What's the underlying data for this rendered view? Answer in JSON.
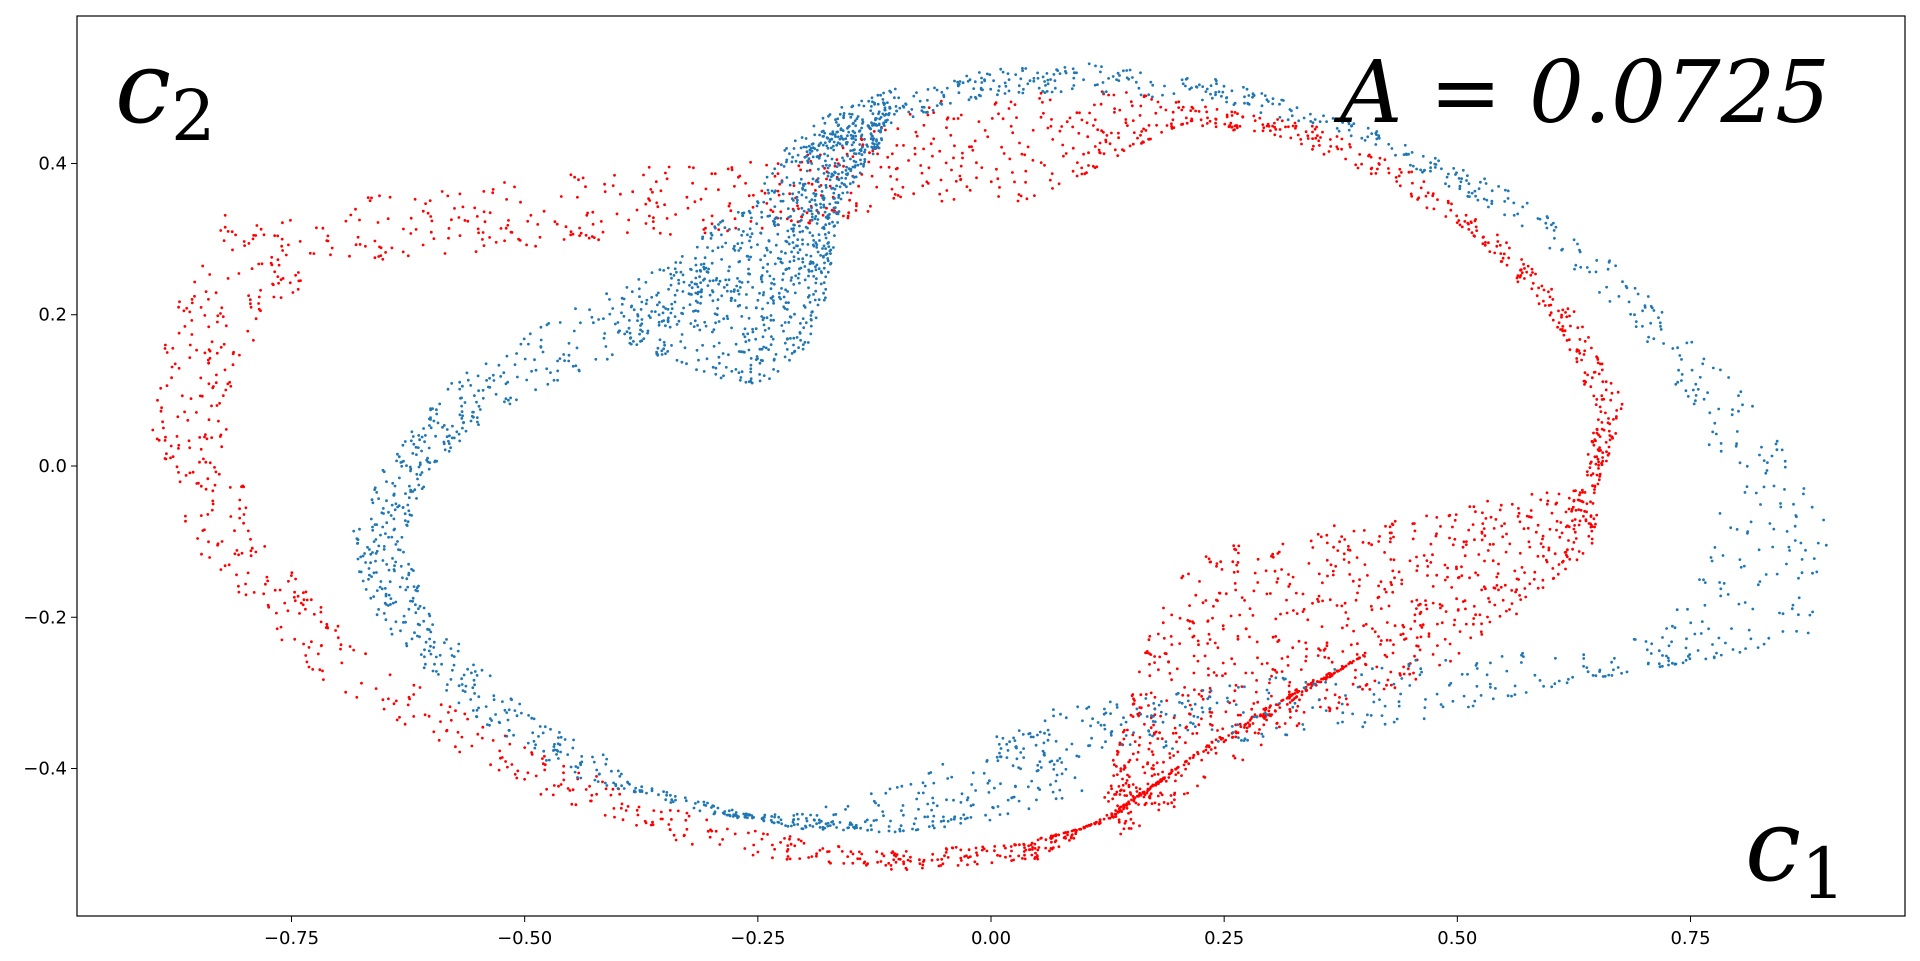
{
  "chart_data": {
    "type": "scatter",
    "title": "",
    "xlabel": "c1",
    "ylabel": "c2",
    "annotation": "A = 0.0725",
    "xlim": [
      -0.98,
      0.98
    ],
    "ylim": [
      -0.595,
      0.595
    ],
    "x_ticks": [
      -0.75,
      -0.5,
      -0.25,
      0.0,
      0.25,
      0.5,
      0.75
    ],
    "x_tick_labels": [
      "−0.75",
      "−0.50",
      "−0.25",
      "0.00",
      "0.25",
      "0.50",
      "0.75"
    ],
    "y_ticks": [
      -0.4,
      -0.2,
      0.0,
      0.2,
      0.4
    ],
    "y_tick_labels": [
      "−0.4",
      "−0.2",
      "0.0",
      "0.2",
      "0.4"
    ],
    "grid": false,
    "legend": "none",
    "series": [
      {
        "color": "#ff0000",
        "points_per_band": 900,
        "bands": [
          {
            "outer": [
              [
                -0.82,
                0.34
              ],
              [
                -0.88,
                0.2
              ],
              [
                -0.9,
                0.05
              ],
              [
                -0.85,
                -0.12
              ],
              [
                -0.72,
                -0.28
              ],
              [
                -0.52,
                -0.42
              ],
              [
                -0.3,
                -0.51
              ],
              [
                -0.1,
                -0.535
              ],
              [
                0.05,
                -0.52
              ],
              [
                0.15,
                -0.45
              ],
              [
                0.23,
                -0.37
              ],
              [
                0.32,
                -0.3
              ],
              [
                0.4,
                -0.25
              ]
            ],
            "inner": [
              [
                -0.7,
                0.27
              ],
              [
                -0.78,
                0.2
              ],
              [
                -0.82,
                0.05
              ],
              [
                -0.78,
                -0.1
              ],
              [
                -0.66,
                -0.26
              ],
              [
                -0.48,
                -0.38
              ],
              [
                -0.3,
                -0.47
              ],
              [
                -0.12,
                -0.51
              ],
              [
                0.02,
                -0.5
              ],
              [
                0.1,
                -0.48
              ],
              [
                0.18,
                -0.42
              ],
              [
                0.3,
                -0.33
              ],
              [
                0.4,
                -0.25
              ]
            ]
          },
          {
            "outer": [
              [
                -0.8,
                0.32
              ],
              [
                -0.65,
                0.36
              ],
              [
                -0.45,
                0.39
              ],
              [
                -0.3,
                0.41
              ],
              [
                -0.2,
                0.41
              ],
              [
                -0.12,
                0.45
              ],
              [
                -0.05,
                0.49
              ],
              [
                0.05,
                0.5
              ],
              [
                0.15,
                0.495
              ],
              [
                0.25,
                0.47
              ],
              [
                0.35,
                0.45
              ],
              [
                0.45,
                0.39
              ],
              [
                0.55,
                0.3
              ],
              [
                0.63,
                0.2
              ],
              [
                0.68,
                0.08
              ],
              [
                0.65,
                -0.03
              ]
            ],
            "inner": [
              [
                -0.7,
                0.26
              ],
              [
                -0.55,
                0.28
              ],
              [
                -0.4,
                0.3
              ],
              [
                -0.28,
                0.31
              ],
              [
                -0.18,
                0.32
              ],
              [
                -0.1,
                0.34
              ],
              [
                -0.02,
                0.35
              ],
              [
                0.05,
                0.35
              ],
              [
                0.12,
                0.4
              ],
              [
                0.2,
                0.45
              ],
              [
                0.3,
                0.44
              ],
              [
                0.42,
                0.38
              ],
              [
                0.53,
                0.29
              ],
              [
                0.61,
                0.18
              ],
              [
                0.65,
                0.07
              ],
              [
                0.63,
                -0.04
              ]
            ]
          },
          {
            "outer": [
              [
                0.65,
                -0.03
              ],
              [
                0.55,
                -0.04
              ],
              [
                0.45,
                -0.07
              ],
              [
                0.35,
                -0.08
              ],
              [
                0.25,
                -0.1
              ],
              [
                0.18,
                -0.17
              ],
              [
                0.15,
                -0.3
              ],
              [
                0.12,
                -0.44
              ]
            ],
            "inner": [
              [
                0.65,
                -0.1
              ],
              [
                0.56,
                -0.2
              ],
              [
                0.48,
                -0.27
              ],
              [
                0.42,
                -0.3
              ],
              [
                0.35,
                -0.33
              ],
              [
                0.28,
                -0.38
              ],
              [
                0.2,
                -0.45
              ],
              [
                0.14,
                -0.49
              ]
            ]
          }
        ]
      },
      {
        "color": "#1f77b4",
        "points_per_band": 900,
        "bands": [
          {
            "outer": [
              [
                -0.2,
                0.42
              ],
              [
                -0.1,
                0.49
              ],
              [
                0.0,
                0.525
              ],
              [
                0.1,
                0.535
              ],
              [
                0.25,
                0.51
              ],
              [
                0.4,
                0.45
              ],
              [
                0.55,
                0.37
              ],
              [
                0.7,
                0.24
              ],
              [
                0.82,
                0.08
              ],
              [
                0.9,
                -0.08
              ],
              [
                0.88,
                -0.22
              ],
              [
                0.8,
                -0.25
              ],
              [
                0.65,
                -0.24
              ],
              [
                0.5,
                -0.25
              ],
              [
                0.35,
                -0.27
              ],
              [
                0.2,
                -0.3
              ],
              [
                0.05,
                -0.32
              ]
            ],
            "inner": [
              [
                -0.2,
                0.4
              ],
              [
                -0.1,
                0.455
              ],
              [
                0.0,
                0.49
              ],
              [
                0.1,
                0.495
              ],
              [
                0.25,
                0.48
              ],
              [
                0.4,
                0.43
              ],
              [
                0.55,
                0.33
              ],
              [
                0.68,
                0.2
              ],
              [
                0.76,
                0.06
              ],
              [
                0.78,
                -0.1
              ],
              [
                0.72,
                -0.2
              ],
              [
                0.6,
                -0.29
              ],
              [
                0.45,
                -0.34
              ],
              [
                0.3,
                -0.36
              ],
              [
                0.15,
                -0.38
              ],
              [
                0.05,
                -0.39
              ],
              [
                -0.05,
                -0.42
              ]
            ]
          },
          {
            "outer": [
              [
                -0.32,
                0.28
              ],
              [
                -0.45,
                0.21
              ],
              [
                -0.58,
                0.11
              ],
              [
                -0.65,
                0.0
              ],
              [
                -0.69,
                -0.1
              ],
              [
                -0.66,
                -0.2
              ],
              [
                -0.57,
                -0.32
              ],
              [
                -0.45,
                -0.41
              ],
              [
                -0.3,
                -0.46
              ],
              [
                -0.2,
                -0.46
              ],
              [
                -0.1,
                -0.42
              ],
              [
                0.05,
                -0.33
              ]
            ],
            "inner": [
              [
                -0.28,
                0.24
              ],
              [
                -0.4,
                0.14
              ],
              [
                -0.52,
                0.08
              ],
              [
                -0.6,
                0.0
              ],
              [
                -0.63,
                -0.1
              ],
              [
                -0.6,
                -0.2
              ],
              [
                -0.5,
                -0.32
              ],
              [
                -0.35,
                -0.43
              ],
              [
                -0.2,
                -0.48
              ],
              [
                -0.1,
                -0.485
              ],
              [
                0.0,
                -0.47
              ],
              [
                0.1,
                -0.43
              ]
            ]
          },
          {
            "outer": [
              [
                -0.42,
                0.17
              ],
              [
                -0.35,
                0.27
              ],
              [
                -0.27,
                0.34
              ],
              [
                -0.22,
                0.42
              ],
              [
                -0.17,
                0.47
              ],
              [
                -0.1,
                0.5
              ]
            ],
            "inner": [
              [
                -0.25,
                0.1
              ],
              [
                -0.2,
                0.15
              ],
              [
                -0.18,
                0.2
              ],
              [
                -0.17,
                0.27
              ],
              [
                -0.16,
                0.35
              ],
              [
                -0.12,
                0.42
              ]
            ]
          }
        ]
      }
    ]
  }
}
